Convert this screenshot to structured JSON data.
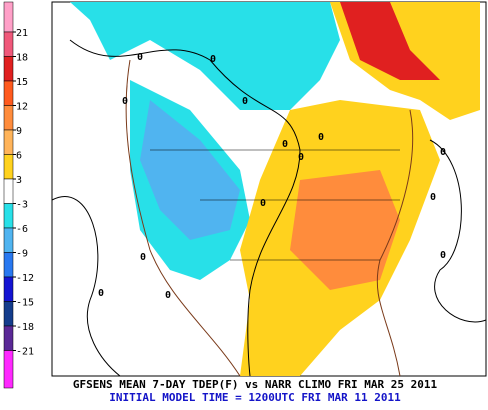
{
  "legend": {
    "labels": [
      21,
      18,
      15,
      12,
      9,
      6,
      3,
      -3,
      -6,
      -9,
      -12,
      -15,
      -18,
      -21
    ],
    "colors": [
      "#ffa0c8",
      "#f0587a",
      "#e02020",
      "#ff5a1e",
      "#ff8c3c",
      "#ffb45a",
      "#ffd21e",
      "#ffffff",
      "#28e0e8",
      "#50b4f0",
      "#2878f0",
      "#1414d2",
      "#143c8c",
      "#5a2896",
      "#ff28ff"
    ]
  },
  "map": {
    "contour_labels": [
      "0",
      "0",
      "0",
      "0",
      "0",
      "0",
      "0",
      "0",
      "0",
      "0",
      "0",
      "0",
      "0",
      "0"
    ]
  },
  "caption": {
    "line1": "GFSENS MEAN 7-DAY TDEP(F) vs NARR CLIMO FRI MAR 25 2011",
    "line2": "INITIAL MODEL TIME = 1200UTC FRI MAR 11 2011"
  }
}
